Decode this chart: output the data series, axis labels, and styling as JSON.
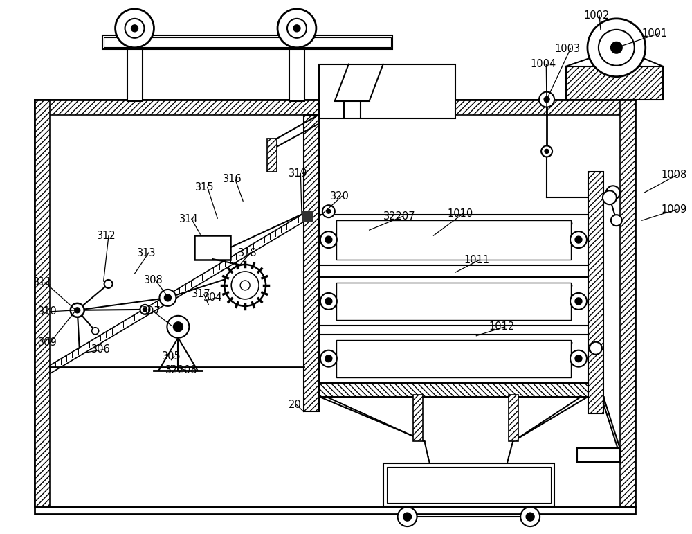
{
  "bg_color": "#ffffff",
  "fig_width": 10.0,
  "fig_height": 7.71,
  "annotations": [
    [
      "1001",
      930,
      48,
      893,
      68
    ],
    [
      "1002",
      845,
      22,
      870,
      42
    ],
    [
      "1003",
      803,
      70,
      792,
      143
    ],
    [
      "1004",
      768,
      92,
      792,
      165
    ],
    [
      "1008",
      958,
      252,
      933,
      278
    ],
    [
      "1009",
      958,
      302,
      930,
      318
    ],
    [
      "1010",
      648,
      308,
      628,
      340
    ],
    [
      "1011",
      672,
      375,
      660,
      393
    ],
    [
      "1012",
      708,
      472,
      690,
      485
    ],
    [
      "32207",
      555,
      312,
      535,
      332
    ],
    [
      "319",
      418,
      250,
      437,
      308
    ],
    [
      "320",
      478,
      283,
      462,
      313
    ],
    [
      "314",
      260,
      316,
      290,
      338
    ],
    [
      "315",
      283,
      270,
      315,
      315
    ],
    [
      "316",
      323,
      258,
      352,
      290
    ],
    [
      "317",
      278,
      425,
      302,
      440
    ],
    [
      "318",
      345,
      365,
      343,
      388
    ],
    [
      "313",
      198,
      365,
      195,
      395
    ],
    [
      "312",
      140,
      340,
      150,
      406
    ],
    [
      "311",
      48,
      408,
      110,
      448
    ],
    [
      "310",
      55,
      450,
      110,
      448
    ],
    [
      "309",
      55,
      495,
      110,
      448
    ],
    [
      "308",
      208,
      405,
      242,
      427
    ],
    [
      "307",
      205,
      450,
      248,
      470
    ],
    [
      "306",
      132,
      505,
      120,
      510
    ],
    [
      "305",
      235,
      515,
      248,
      520
    ],
    [
      "304",
      295,
      430,
      302,
      433
    ],
    [
      "32208",
      240,
      535,
      248,
      528
    ],
    [
      "20",
      418,
      585,
      440,
      595
    ]
  ]
}
